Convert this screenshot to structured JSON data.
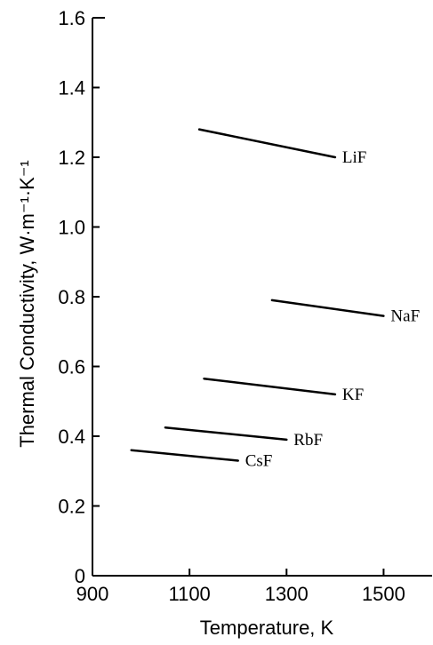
{
  "chart_data": {
    "type": "line",
    "xlabel": "Temperature,  K",
    "ylabel": "Thermal Conductivity,  W·m⁻¹·K⁻¹",
    "xlim": [
      900,
      1600
    ],
    "ylim": [
      0,
      1.6
    ],
    "xticks": [
      900,
      1100,
      1300,
      1500
    ],
    "xtick_labels": [
      "900",
      "1100",
      "1300",
      "1500"
    ],
    "yticks": [
      0,
      0.2,
      0.4,
      0.6,
      0.8,
      1.0,
      1.2,
      1.4,
      1.6
    ],
    "ytick_labels": [
      "0",
      "0.2",
      "0.4",
      "0.6",
      "0.8",
      "1.0",
      "1.2",
      "1.4",
      "1.6"
    ],
    "grid": false,
    "series": [
      {
        "name": "LiF",
        "x": [
          1120,
          1400
        ],
        "y": [
          1.28,
          1.2
        ]
      },
      {
        "name": "NaF",
        "x": [
          1270,
          1500
        ],
        "y": [
          0.79,
          0.745
        ]
      },
      {
        "name": "KF",
        "x": [
          1130,
          1400
        ],
        "y": [
          0.565,
          0.52
        ]
      },
      {
        "name": "RbF",
        "x": [
          1050,
          1300
        ],
        "y": [
          0.425,
          0.39
        ]
      },
      {
        "name": "CsF",
        "x": [
          980,
          1200
        ],
        "y": [
          0.36,
          0.33
        ]
      }
    ]
  }
}
